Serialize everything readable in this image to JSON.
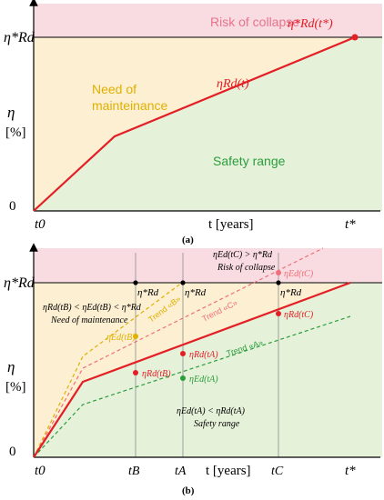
{
  "colors": {
    "pink_zone": "#f9dbe2",
    "amber_zone": "#fcefd2",
    "green_zone": "#e6f1da",
    "red": "#e31e24",
    "pink_text": "#e8738c",
    "amber": "#e0b000",
    "green": "#2a9e3c",
    "light_red": "#f0707a",
    "gridline": "#8c8c8c",
    "axis": "#000000"
  },
  "panel_a": {
    "y_axis_top": "η*Rd",
    "y_axis_label": "η",
    "y_axis_unit": "[%]",
    "origin": "0",
    "x_start": "t0",
    "x_label": "t [years]",
    "x_end": "t*",
    "zone_collapse": "Risk of collapse",
    "zone_maintenance_line1": "Need of",
    "zone_maintenance_line2": "mainteinance",
    "zone_safety": "Safety range",
    "curve_label": "ηRd(t)",
    "end_point_label": "η*Rd(t*)",
    "caption": "(a)"
  },
  "panel_b": {
    "y_axis_top": "η*Rd",
    "y_axis_label": "η",
    "y_axis_unit": "[%]",
    "origin": "0",
    "x_start": "t0",
    "x_label": "t [years]",
    "x_end": "t*",
    "x_ticks": [
      "tB",
      "tA",
      "tC"
    ],
    "threshold_marks": [
      "η*Rd",
      "η*Rd",
      "η*Rd"
    ],
    "collapse_condition": "ηEd(tC) > η*Rd",
    "collapse_text": "Risk of collapse",
    "maintenance_condition": "ηRd(tB) < ηEd(tB) < η*Rd",
    "maintenance_text": "Need of maintenance",
    "safety_condition": "ηEd(tA) < ηRd(tA)",
    "safety_text": "Safety range",
    "trend_b": "Trend «B»",
    "trend_c": "Trend «C»",
    "trend_a": "Trend «A»",
    "point_labels": {
      "ed_b": "ηEd(tB)",
      "rd_b": "ηRd(tB)",
      "rd_a": "ηRd(tA)",
      "ed_a": "ηEd(tA)",
      "ed_c": "ηEd(tC)",
      "rd_c": "ηRd(tC)"
    },
    "caption": "(b)"
  }
}
